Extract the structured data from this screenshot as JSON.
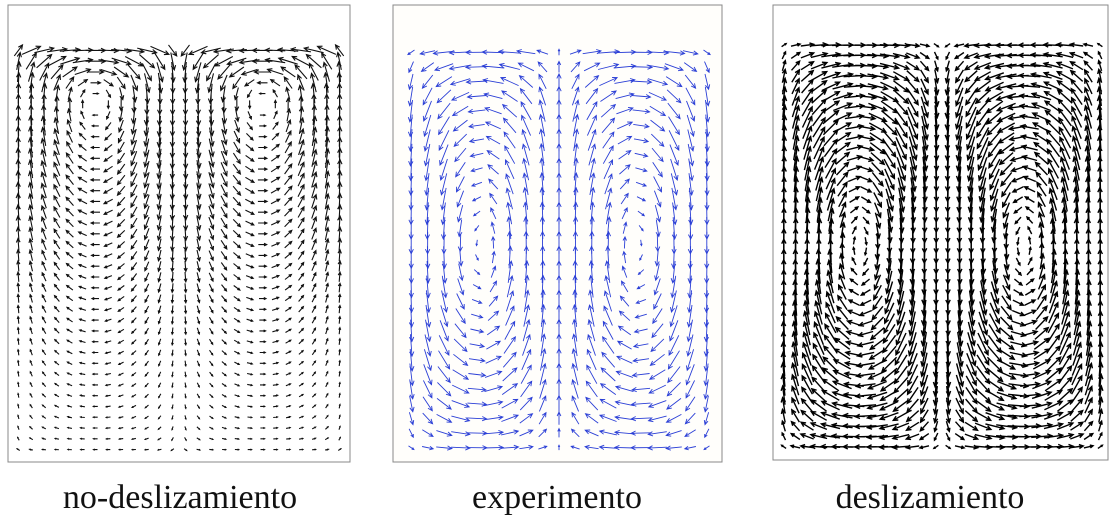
{
  "panels": [
    {
      "caption": "no-deslizamiento"
    },
    {
      "caption": "experimento"
    },
    {
      "caption": "deslizamiento"
    }
  ]
}
